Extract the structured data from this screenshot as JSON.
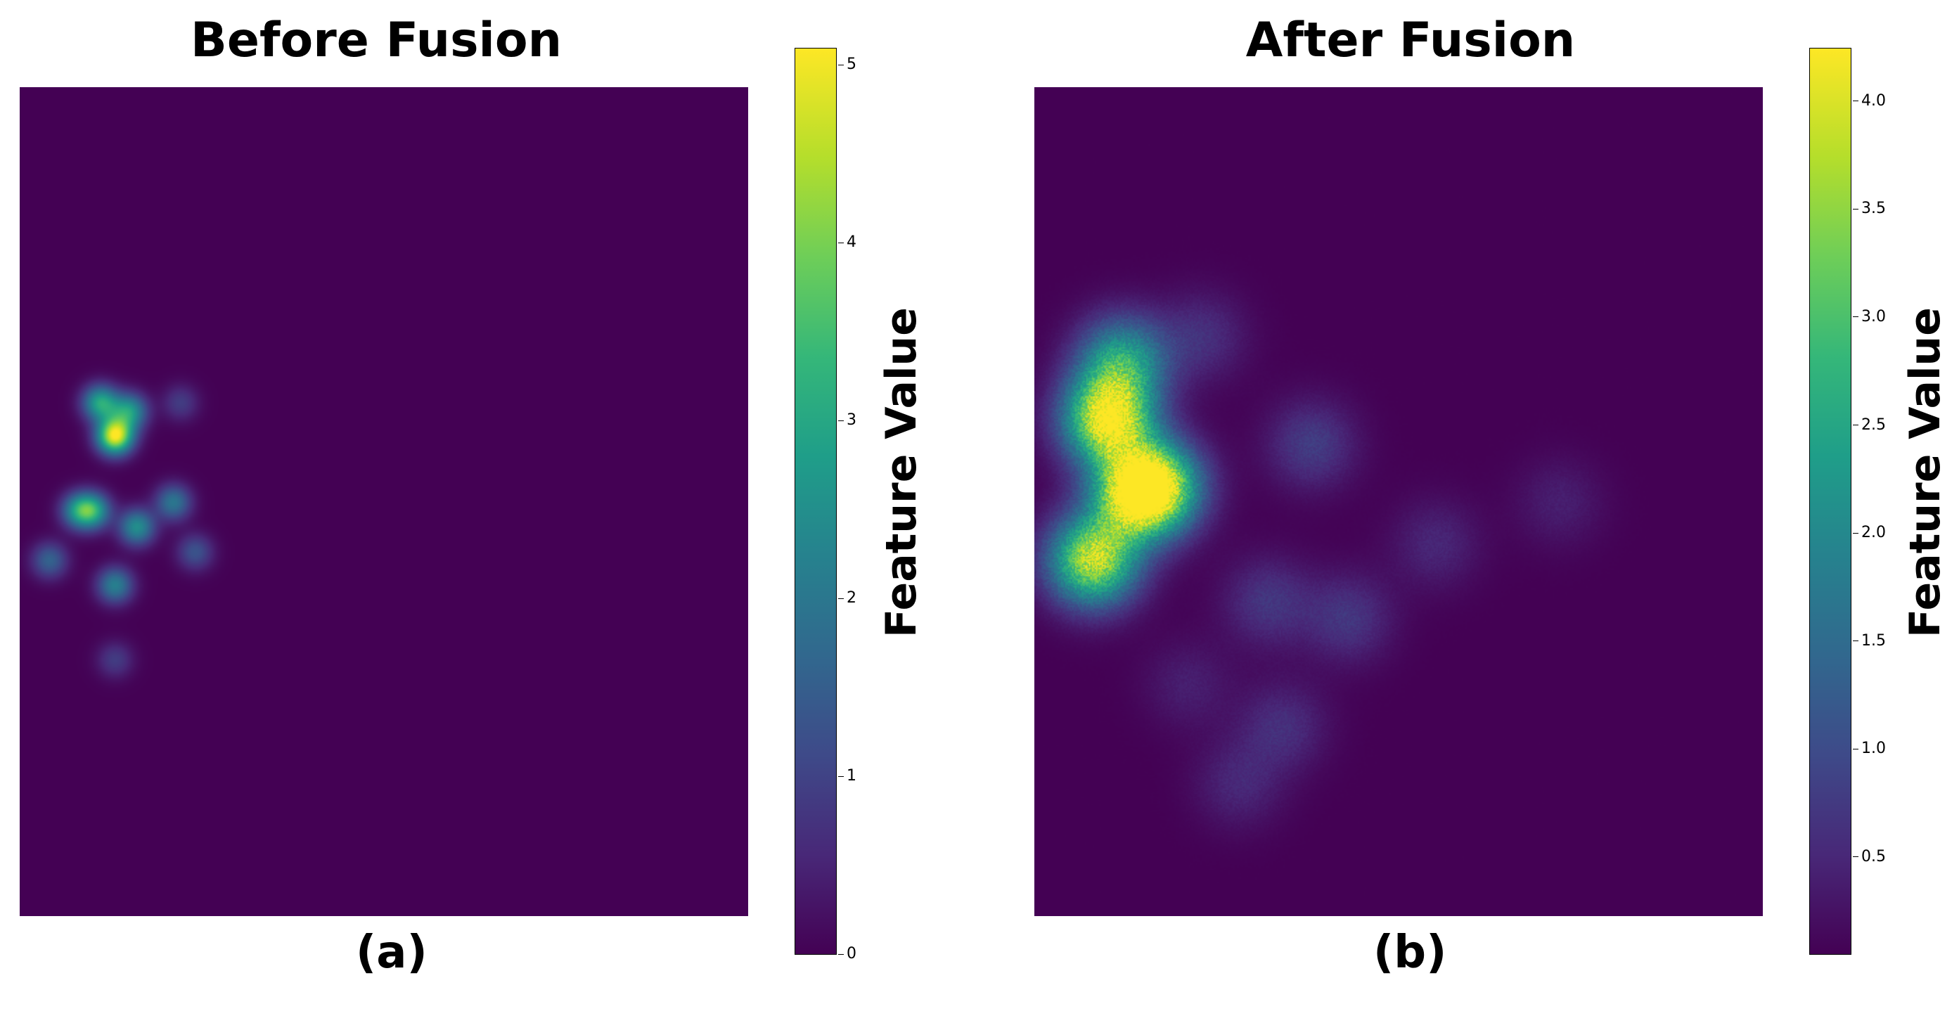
{
  "chart_data": [
    {
      "type": "heatmap",
      "title": "Before Fusion",
      "caption": "(a)",
      "colorbar_label": "Feature Value",
      "colormap": "viridis",
      "value_range": [
        0,
        5.1
      ],
      "colorbar_ticks": [
        "0",
        "1",
        "2",
        "3",
        "4",
        "5"
      ],
      "axes_visible": false,
      "hotspots": [
        {
          "x": 0.13,
          "y": 0.42,
          "value": 5.0
        },
        {
          "x": 0.11,
          "y": 0.38,
          "value": 3.0
        },
        {
          "x": 0.15,
          "y": 0.39,
          "value": 2.6
        },
        {
          "x": 0.1,
          "y": 0.51,
          "value": 2.6
        },
        {
          "x": 0.16,
          "y": 0.53,
          "value": 2.5
        },
        {
          "x": 0.08,
          "y": 0.51,
          "value": 2.3
        },
        {
          "x": 0.13,
          "y": 0.6,
          "value": 2.2
        },
        {
          "x": 0.21,
          "y": 0.5,
          "value": 2.0
        },
        {
          "x": 0.04,
          "y": 0.57,
          "value": 1.6
        },
        {
          "x": 0.24,
          "y": 0.56,
          "value": 1.3
        },
        {
          "x": 0.13,
          "y": 0.69,
          "value": 0.9
        },
        {
          "x": 0.22,
          "y": 0.38,
          "value": 0.9
        }
      ]
    },
    {
      "type": "heatmap",
      "title": "After Fusion",
      "caption": "(b)",
      "colorbar_label": "Feature Value",
      "colormap": "viridis",
      "value_range": [
        0.05,
        4.25
      ],
      "colorbar_ticks": [
        "0.5",
        "1.0",
        "1.5",
        "2.0",
        "2.5",
        "3.0",
        "3.5",
        "4.0"
      ],
      "axes_visible": false,
      "hotspots": [
        {
          "x": 0.1,
          "y": 0.4,
          "value": 4.2
        },
        {
          "x": 0.14,
          "y": 0.49,
          "value": 3.6
        },
        {
          "x": 0.08,
          "y": 0.57,
          "value": 3.8
        },
        {
          "x": 0.17,
          "y": 0.48,
          "value": 2.8
        },
        {
          "x": 0.12,
          "y": 0.33,
          "value": 2.4
        },
        {
          "x": 0.38,
          "y": 0.43,
          "value": 0.8
        },
        {
          "x": 0.32,
          "y": 0.62,
          "value": 0.7
        },
        {
          "x": 0.43,
          "y": 0.64,
          "value": 0.7
        },
        {
          "x": 0.34,
          "y": 0.77,
          "value": 0.6
        },
        {
          "x": 0.23,
          "y": 0.3,
          "value": 0.6
        },
        {
          "x": 0.28,
          "y": 0.84,
          "value": 0.5
        },
        {
          "x": 0.55,
          "y": 0.55,
          "value": 0.5
        },
        {
          "x": 0.72,
          "y": 0.5,
          "value": 0.4
        },
        {
          "x": 0.21,
          "y": 0.72,
          "value": 0.4
        }
      ]
    }
  ]
}
